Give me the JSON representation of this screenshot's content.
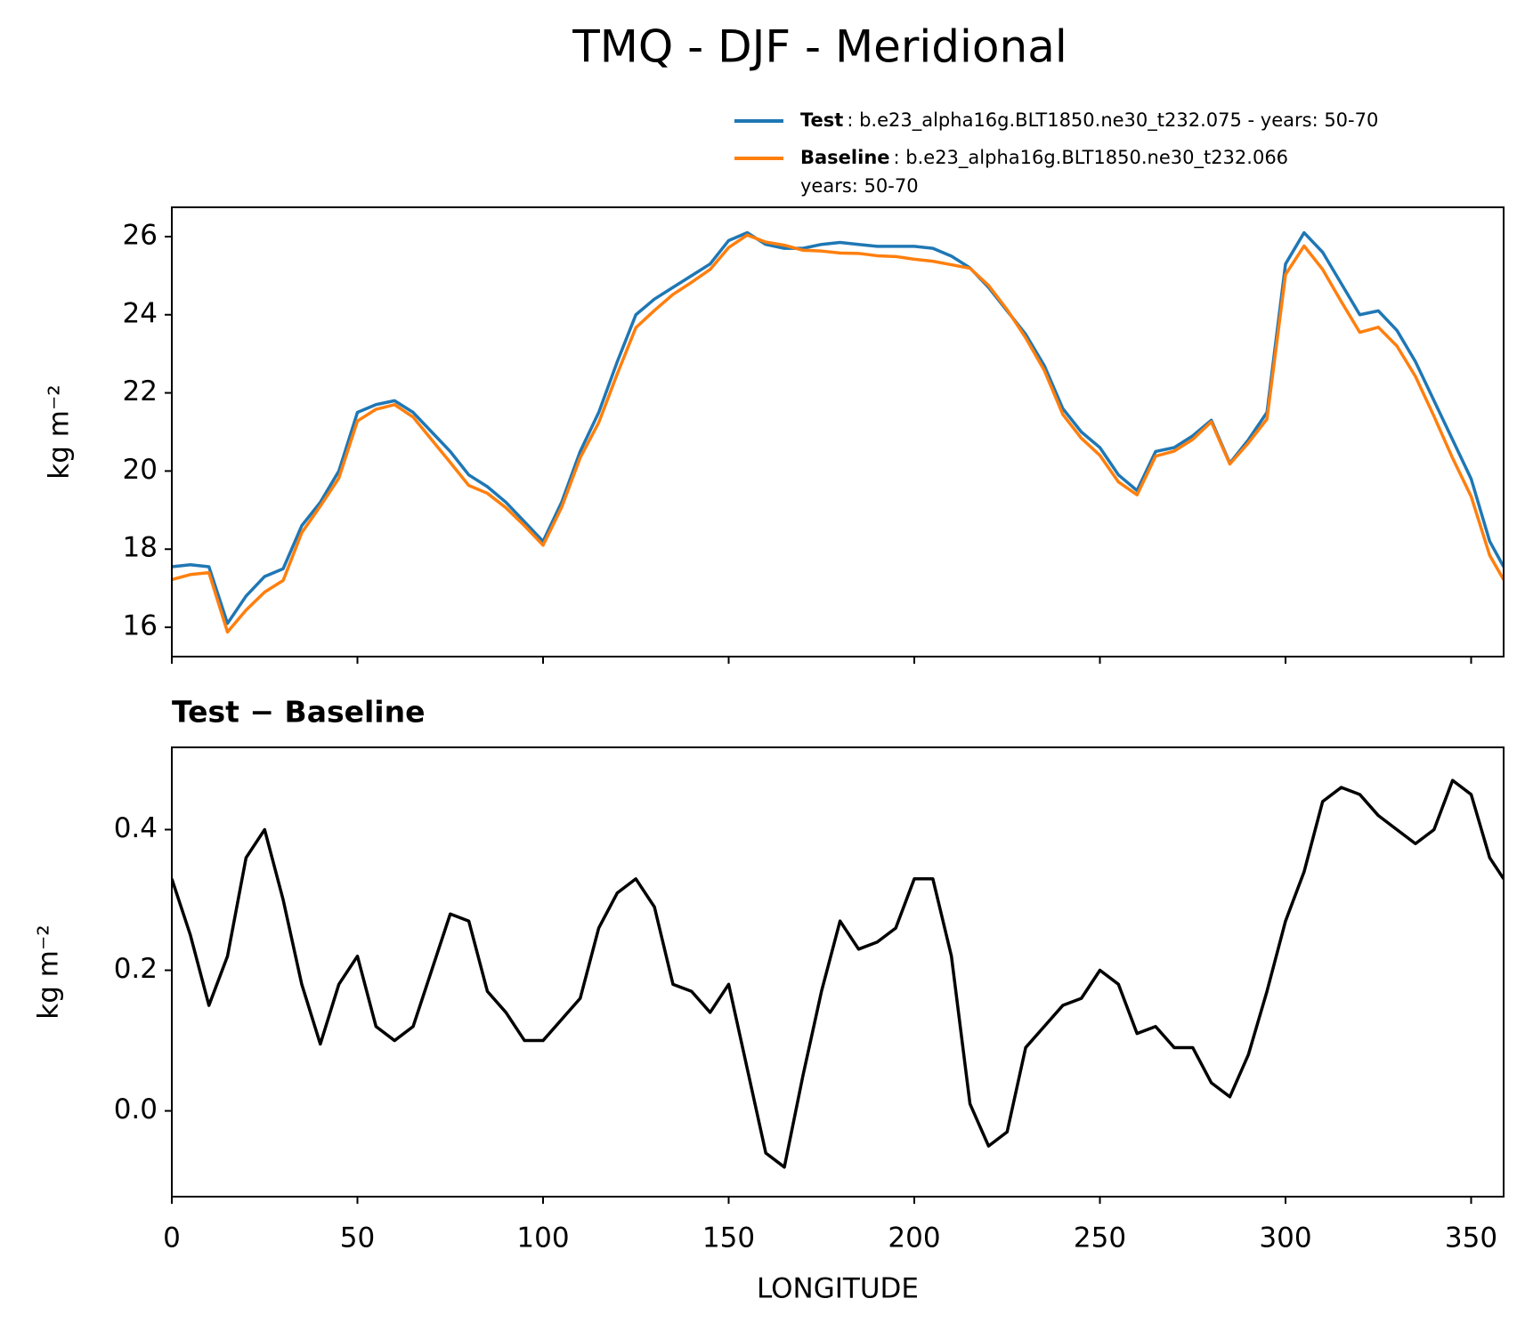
{
  "chart_data": [
    {
      "type": "line",
      "title": "TMQ - DJF - Meridional",
      "ylabel": "kg m⁻²",
      "x": [
        0,
        5,
        10,
        15,
        20,
        25,
        30,
        35,
        40,
        45,
        50,
        55,
        60,
        65,
        70,
        75,
        80,
        85,
        90,
        95,
        100,
        105,
        110,
        115,
        120,
        125,
        130,
        135,
        140,
        145,
        150,
        155,
        160,
        165,
        170,
        175,
        180,
        185,
        190,
        195,
        200,
        205,
        210,
        215,
        220,
        225,
        230,
        235,
        240,
        245,
        250,
        255,
        260,
        265,
        270,
        275,
        280,
        285,
        290,
        295,
        300,
        305,
        310,
        315,
        320,
        325,
        330,
        335,
        340,
        345,
        350,
        355,
        358.75
      ],
      "series": [
        {
          "name": "Test",
          "description": [
            ": b.e23_alpha16g.BLT1850.ne30_t232.075 - years: 50-70"
          ],
          "color": "#1f77b4",
          "values": [
            17.55,
            17.6,
            17.55,
            16.1,
            16.8,
            17.3,
            17.5,
            18.6,
            19.2,
            20.0,
            21.5,
            21.7,
            21.8,
            21.5,
            21.0,
            20.5,
            19.9,
            19.6,
            19.2,
            18.7,
            18.2,
            19.2,
            20.5,
            21.5,
            22.8,
            24.0,
            24.4,
            24.7,
            25.0,
            25.3,
            25.9,
            26.1,
            25.8,
            25.7,
            25.7,
            25.8,
            25.85,
            25.8,
            25.75,
            25.75,
            25.75,
            25.7,
            25.5,
            25.2,
            24.7,
            24.1,
            23.5,
            22.7,
            21.6,
            21.0,
            20.6,
            19.9,
            19.5,
            20.5,
            20.6,
            20.9,
            21.3,
            20.2,
            20.8,
            21.5,
            25.3,
            26.1,
            25.6,
            24.8,
            24.0,
            24.1,
            23.6,
            22.8,
            21.8,
            20.8,
            19.8,
            18.2,
            17.55
          ]
        },
        {
          "name": "Baseline",
          "description": [
            ": b.e23_alpha16g.BLT1850.ne30_t232.066",
            "years: 50-70"
          ],
          "color": "#ff7f0e",
          "values": [
            17.22,
            17.35,
            17.4,
            15.88,
            16.44,
            16.9,
            17.2,
            18.42,
            19.1,
            19.82,
            21.28,
            21.58,
            21.7,
            21.38,
            20.8,
            20.22,
            19.63,
            19.43,
            19.06,
            18.6,
            18.1,
            19.07,
            20.34,
            21.24,
            22.49,
            23.67,
            24.11,
            24.52,
            24.83,
            25.16,
            25.72,
            26.04,
            25.86,
            25.78,
            25.65,
            25.63,
            25.58,
            25.57,
            25.51,
            25.49,
            25.42,
            25.37,
            25.28,
            25.19,
            24.75,
            24.13,
            23.41,
            22.58,
            21.45,
            20.84,
            20.4,
            19.72,
            19.39,
            20.38,
            20.51,
            20.81,
            21.26,
            20.18,
            20.72,
            21.33,
            25.03,
            25.76,
            25.16,
            24.34,
            23.55,
            23.68,
            23.2,
            22.42,
            21.4,
            20.33,
            19.35,
            17.84,
            17.22
          ]
        }
      ],
      "xlim": [
        0,
        358.75
      ],
      "xticks": [
        0,
        50,
        100,
        150,
        200,
        250,
        300,
        350
      ],
      "xtick_labels": false,
      "ylim": [
        15.25,
        26.75
      ],
      "yticks": [
        16,
        18,
        20,
        22,
        24,
        26
      ]
    },
    {
      "type": "line",
      "title": "Test − Baseline",
      "ylabel": "kg m⁻²",
      "xlabel": "LONGITUDE",
      "x": [
        0,
        5,
        10,
        15,
        20,
        25,
        30,
        35,
        40,
        45,
        50,
        55,
        60,
        65,
        70,
        75,
        80,
        85,
        90,
        95,
        100,
        105,
        110,
        115,
        120,
        125,
        130,
        135,
        140,
        145,
        150,
        155,
        160,
        165,
        170,
        175,
        180,
        185,
        190,
        195,
        200,
        205,
        210,
        215,
        220,
        225,
        230,
        235,
        240,
        245,
        250,
        255,
        260,
        265,
        270,
        275,
        280,
        285,
        290,
        295,
        300,
        305,
        310,
        315,
        320,
        325,
        330,
        335,
        340,
        345,
        350,
        355,
        358.75
      ],
      "series": [
        {
          "color": "#000000",
          "values": [
            0.33,
            0.25,
            0.15,
            0.22,
            0.36,
            0.4,
            0.3,
            0.18,
            0.095,
            0.18,
            0.22,
            0.12,
            0.1,
            0.12,
            0.2,
            0.28,
            0.27,
            0.17,
            0.14,
            0.1,
            0.1,
            0.13,
            0.16,
            0.26,
            0.31,
            0.33,
            0.29,
            0.18,
            0.17,
            0.14,
            0.18,
            0.06,
            -0.06,
            -0.08,
            0.05,
            0.17,
            0.27,
            0.23,
            0.24,
            0.26,
            0.33,
            0.33,
            0.22,
            0.01,
            -0.05,
            -0.03,
            0.09,
            0.12,
            0.15,
            0.16,
            0.2,
            0.18,
            0.11,
            0.12,
            0.09,
            0.09,
            0.04,
            0.02,
            0.08,
            0.17,
            0.27,
            0.34,
            0.44,
            0.46,
            0.45,
            0.42,
            0.4,
            0.38,
            0.4,
            0.47,
            0.45,
            0.36,
            0.33
          ]
        }
      ],
      "xlim": [
        0,
        358.75
      ],
      "xticks": [
        0,
        50,
        100,
        150,
        200,
        250,
        300,
        350
      ],
      "xtick_labels": true,
      "ylim": [
        -0.122,
        0.517
      ],
      "yticks": [
        {
          "value": 0,
          "label": "0.0"
        },
        0.2,
        0.4
      ]
    }
  ]
}
